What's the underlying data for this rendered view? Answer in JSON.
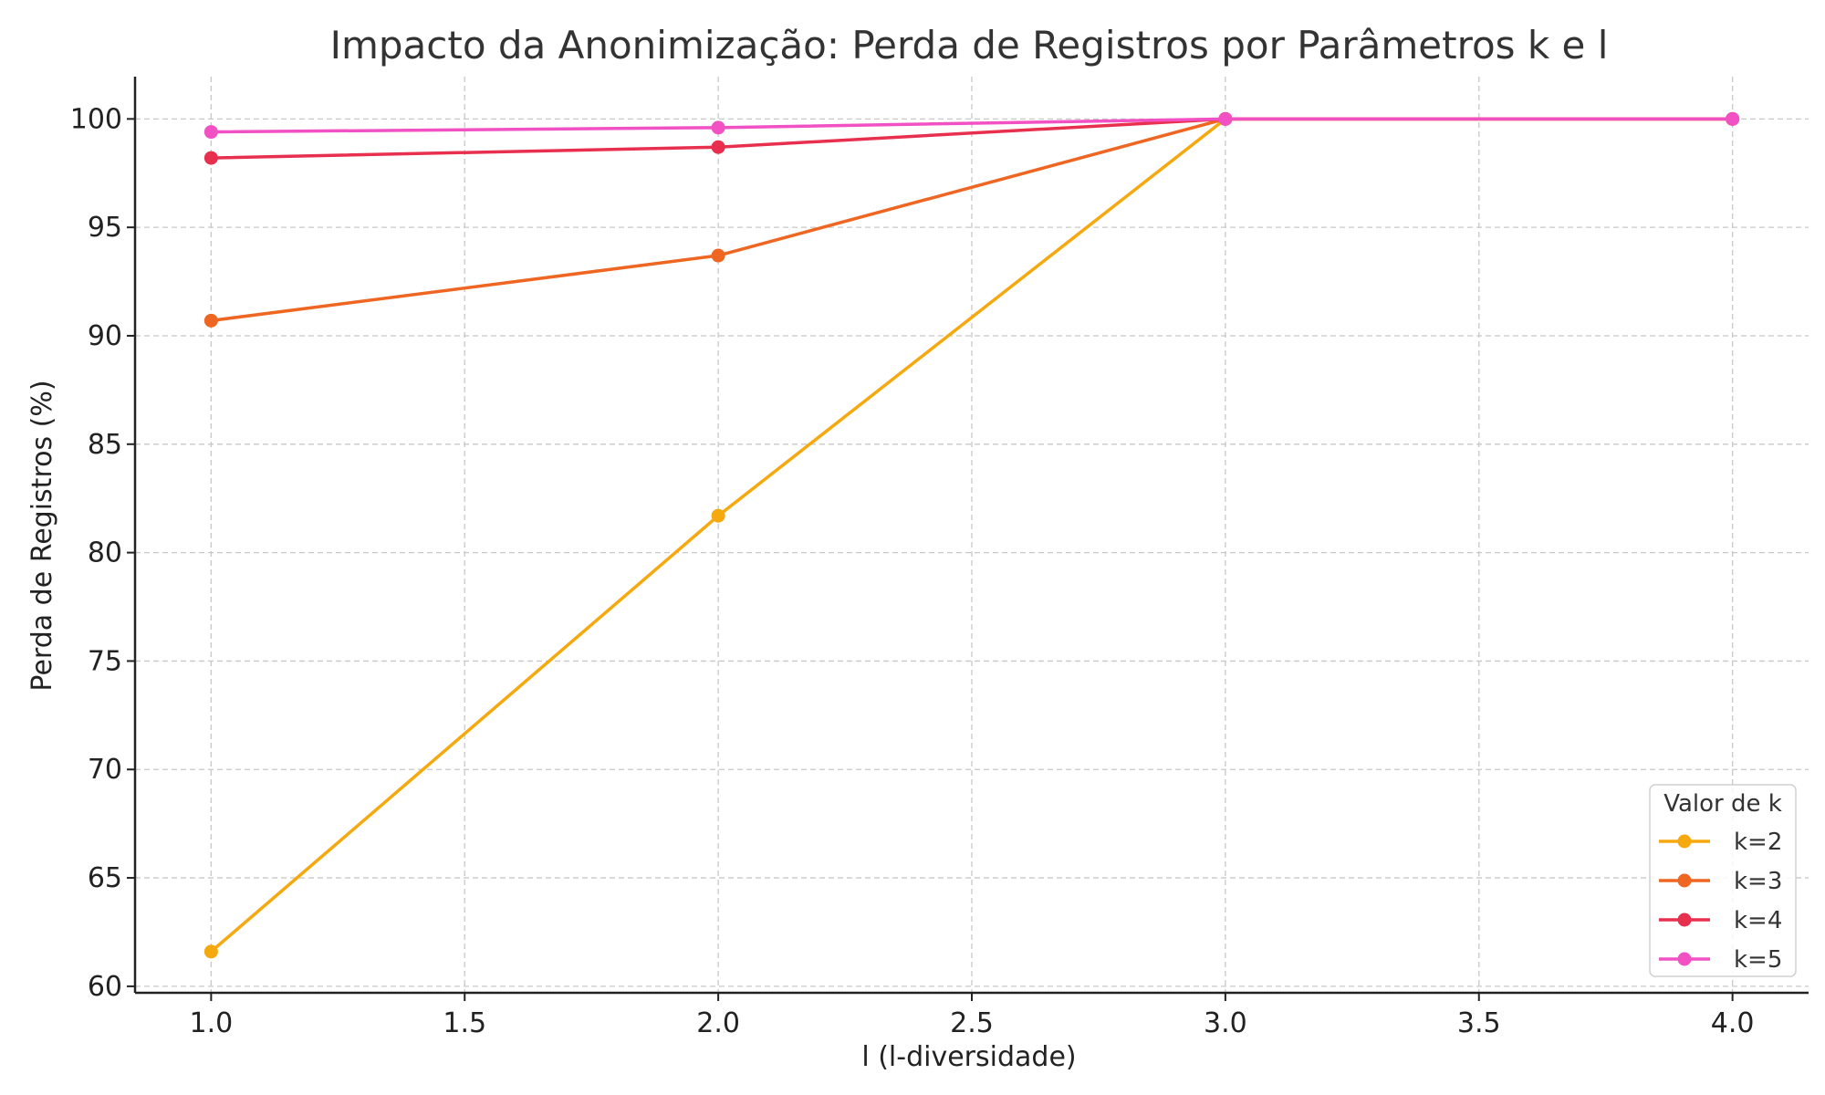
{
  "chart_data": {
    "type": "line",
    "title": "Impacto da Anonimização: Perda de Registros por Parâmetros k e l",
    "xlabel": "l (l-diversidade)",
    "ylabel": "Perda de Registros (%)",
    "xlim": [
      0.85,
      4.15
    ],
    "ylim": [
      59.7,
      101.95
    ],
    "xticks": [
      1.0,
      1.5,
      2.0,
      2.5,
      3.0,
      3.5,
      4.0
    ],
    "xtick_labels": [
      "1.0",
      "1.5",
      "2.0",
      "2.5",
      "3.0",
      "3.5",
      "4.0"
    ],
    "yticks": [
      60,
      65,
      70,
      75,
      80,
      85,
      90,
      95,
      100
    ],
    "ytick_labels": [
      "60",
      "65",
      "70",
      "75",
      "80",
      "85",
      "90",
      "95",
      "100"
    ],
    "grid": true,
    "legend": {
      "title": "Valor de k",
      "placement": "lower-right"
    },
    "series": [
      {
        "name": "k=2",
        "color": "#f5a90f",
        "x": [
          1.0,
          2.0,
          3.0,
          4.0
        ],
        "y": [
          61.6,
          81.7,
          100.0,
          100.0
        ]
      },
      {
        "name": "k=3",
        "color": "#ee6622",
        "x": [
          1.0,
          2.0,
          3.0,
          4.0
        ],
        "y": [
          90.7,
          93.7,
          100.0,
          100.0
        ]
      },
      {
        "name": "k=4",
        "color": "#e8304e",
        "x": [
          1.0,
          2.0,
          3.0,
          4.0
        ],
        "y": [
          98.2,
          98.7,
          100.0,
          100.0
        ]
      },
      {
        "name": "k=5",
        "color": "#f251c4",
        "x": [
          1.0,
          2.0,
          3.0,
          4.0
        ],
        "y": [
          99.4,
          99.6,
          100.0,
          100.0
        ]
      }
    ]
  }
}
